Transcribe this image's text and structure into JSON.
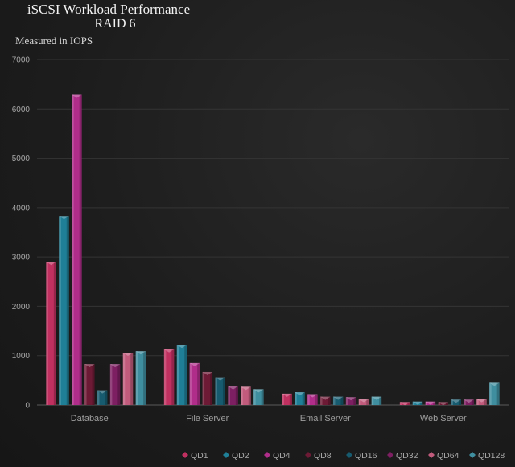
{
  "chart_data": {
    "type": "bar",
    "title": "iSCSI Workload Performance",
    "subtitle": "RAID 6",
    "unit_note": "Measured in IOPS",
    "xlabel": "",
    "ylabel": "",
    "ylim": [
      0,
      7000
    ],
    "yticks": [
      "0",
      "1000",
      "2000",
      "3000",
      "4000",
      "5000",
      "6000",
      "7000"
    ],
    "grid": true,
    "legend_position": "bottom",
    "categories": [
      "Database",
      "File Server",
      "Email Server",
      "Web Server"
    ],
    "series": [
      {
        "name": "QD1",
        "color": "#c03060",
        "values": [
          2900,
          1130,
          230,
          60
        ]
      },
      {
        "name": "QD2",
        "color": "#1f7f97",
        "values": [
          3830,
          1220,
          260,
          70
        ]
      },
      {
        "name": "QD4",
        "color": "#b02d8a",
        "values": [
          6290,
          850,
          220,
          70
        ]
      },
      {
        "name": "QD8",
        "color": "#6d1a35",
        "values": [
          830,
          670,
          170,
          60
        ]
      },
      {
        "name": "QD16",
        "color": "#175b6f",
        "values": [
          300,
          560,
          170,
          110
        ]
      },
      {
        "name": "QD32",
        "color": "#7d1f62",
        "values": [
          830,
          380,
          160,
          110
        ]
      },
      {
        "name": "QD64",
        "color": "#c15b7c",
        "values": [
          1060,
          370,
          120,
          120
        ]
      },
      {
        "name": "QD128",
        "color": "#3f8e9f",
        "values": [
          1090,
          320,
          170,
          450
        ]
      }
    ]
  }
}
